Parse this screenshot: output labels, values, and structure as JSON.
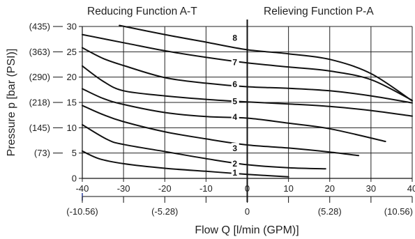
{
  "header": {
    "left_title": "Reducing Function A-T",
    "right_title": "Relieving Function P-A"
  },
  "chart_data": {
    "type": "line",
    "xlabel": "Flow Q [l/min (GPM)]",
    "ylabel": "Pressure p [bar (PSI)]",
    "xlim": [
      -40,
      40
    ],
    "ylim": [
      0,
      30
    ],
    "x_ticks": [
      "-40",
      "-30",
      "-20",
      "-10",
      "0",
      "10",
      "20",
      "30",
      "40"
    ],
    "x_gpm_ticks": [
      {
        "label": "(-10.56)",
        "lpm": -40
      },
      {
        "label": "(-5.28)",
        "lpm": -20
      },
      {
        "label": "0",
        "lpm": 0
      },
      {
        "label": "(5.28)",
        "lpm": 20
      },
      {
        "label": "(10.56)",
        "lpm": 40
      }
    ],
    "y_ticks": [
      {
        "label": "0",
        "value": 0
      },
      {
        "label": "5",
        "value": 5
      },
      {
        "label": "10",
        "value": 10
      },
      {
        "label": "15",
        "value": 15
      },
      {
        "label": "20",
        "value": 20
      },
      {
        "label": "25",
        "value": 25
      },
      {
        "label": "30",
        "value": 30
      }
    ],
    "y_psi_ticks": [
      {
        "label": "(73)",
        "value": 5
      },
      {
        "label": "(145)",
        "value": 10
      },
      {
        "label": "(218)",
        "value": 15
      },
      {
        "label": "(290)",
        "value": 20
      },
      {
        "label": "(363)",
        "value": 25
      },
      {
        "label": "(435)",
        "value": 30
      }
    ],
    "grid": true,
    "series": [
      {
        "name": "1",
        "x": [
          -40,
          -36,
          -30,
          -20,
          -10,
          0,
          10
        ],
        "y": [
          5.4,
          3.9,
          2.9,
          2.0,
          1.4,
          0.8,
          0.3
        ],
        "label_at": {
          "x": -3,
          "y": 1.1
        }
      },
      {
        "name": "2",
        "x": [
          -40,
          -34,
          -30,
          -20,
          -10,
          0,
          10,
          19
        ],
        "y": [
          10.6,
          7.7,
          6.7,
          5.3,
          3.9,
          2.7,
          2.1,
          1.9
        ],
        "label_at": {
          "x": -3,
          "y": 2.9
        }
      },
      {
        "name": "3",
        "x": [
          -40,
          -35,
          -30,
          -20,
          -10,
          0,
          10,
          20,
          27
        ],
        "y": [
          14.4,
          12.6,
          11.2,
          9.2,
          7.8,
          6.6,
          6.0,
          5.2,
          4.5
        ],
        "label_at": {
          "x": -3,
          "y": 5.9
        }
      },
      {
        "name": "4",
        "x": [
          -40,
          -35,
          -30,
          -20,
          -10,
          0,
          10,
          20,
          33.5
        ],
        "y": [
          17.7,
          15.8,
          14.6,
          13.0,
          12.2,
          11.9,
          10.9,
          9.8,
          7.3
        ],
        "label_at": {
          "x": -3,
          "y": 12.1
        }
      },
      {
        "name": "5",
        "x": [
          -40,
          -35,
          -30,
          -20,
          -10,
          0,
          10,
          20,
          30,
          40
        ],
        "y": [
          22.2,
          19.2,
          17.3,
          16.3,
          15.6,
          15.1,
          14.7,
          14.2,
          13.4,
          12.3
        ],
        "label_at": {
          "x": -3,
          "y": 15.2
        }
      },
      {
        "name": "6",
        "x": [
          -40,
          -35,
          -30,
          -20,
          -10,
          0,
          10,
          20,
          30,
          40
        ],
        "y": [
          25.8,
          23.7,
          22.3,
          19.9,
          18.8,
          18.1,
          17.8,
          17.3,
          16.3,
          14.9
        ],
        "label_at": {
          "x": -3,
          "y": 18.6
        }
      },
      {
        "name": "7",
        "x": [
          -40,
          -30,
          -20,
          -10,
          0,
          10,
          20,
          30,
          40
        ],
        "y": [
          28.4,
          26.8,
          25.2,
          23.9,
          22.8,
          22.0,
          21.2,
          19.5,
          15.4
        ],
        "label_at": {
          "x": -3,
          "y": 22.9
        }
      },
      {
        "name": "8",
        "x": [
          -31,
          -20,
          -10,
          0,
          10,
          20,
          30,
          40
        ],
        "y": [
          30.2,
          28.4,
          26.9,
          25.4,
          24.6,
          23.5,
          20.7,
          15.3
        ],
        "label_at": {
          "x": -3,
          "y": 27.7
        }
      }
    ]
  }
}
